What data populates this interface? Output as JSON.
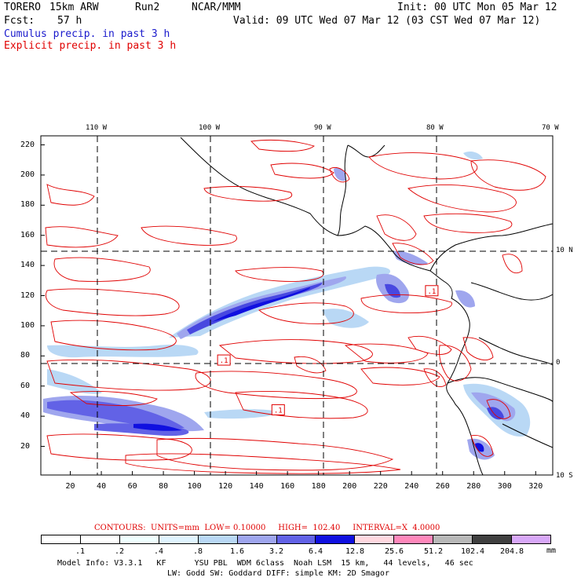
{
  "header": {
    "model_name": "TORERO",
    "resolution": "15km ARW",
    "run": "Run2",
    "center": "NCAR/MMM",
    "init_label": "Init: 00 UTC Mon 05 Mar 12",
    "fcst_label": "Fcst:",
    "fcst_value": "57 h",
    "valid_label": "Valid: 09 UTC Wed 07 Mar 12 (03 CST Wed 07 Mar 12)"
  },
  "legend": {
    "cumulus": "Cumulus precip. in past 3 h",
    "explicit": "Explicit precip. in past 3 h",
    "cumulus_color": "#1a1acc",
    "explicit_color": "#e00000"
  },
  "axes": {
    "top_lon_labels": [
      "110 W",
      "100 W",
      "90 W",
      "80 W",
      "70 W"
    ],
    "right_lat_labels": [
      "10 N",
      "0",
      "10 S"
    ],
    "left_y_ticks": [
      "220",
      "200",
      "180",
      "160",
      "140",
      "120",
      "100",
      "80",
      "60",
      "40",
      "20"
    ],
    "bottom_x_ticks": [
      "20",
      "40",
      "60",
      "80",
      "100",
      "120",
      "140",
      "160",
      "180",
      "200",
      "220",
      "240",
      "260",
      "280",
      "300",
      "320"
    ]
  },
  "map_data": {
    "type": "precipitation map",
    "x_range": [
      1,
      331
    ],
    "y_range": [
      1,
      226
    ],
    "lon_grid_x": [
      39,
      117,
      193,
      270
    ],
    "lat_grid_y": [
      150,
      75
    ],
    "contour_boxes": [
      {
        "label": ".1",
        "x": 119,
        "y": 77
      },
      {
        "label": ".1",
        "x": 154,
        "y": 44
      },
      {
        "label": ".1",
        "x": 253,
        "y": 123
      }
    ]
  },
  "contours": {
    "text": "CONTOURS:  UNITS=mm  LOW= 0.10000     HIGH=  102.40     INTERVAL=X  4.0000",
    "color": "#e00000"
  },
  "colorbar": {
    "labels": [
      ".1",
      ".2",
      ".4",
      ".8",
      "1.6",
      "3.2",
      "6.4",
      "12.8",
      "25.6",
      "51.2",
      "102.4",
      "204.8"
    ],
    "colors": [
      "#ffffff",
      "#ffffff",
      "#f0ffff",
      "#e0f4ff",
      "#b9d8f5",
      "#9fa6ee",
      "#6262e6",
      "#1010e0",
      "#ffd8e0",
      "#ff88bb",
      "#b8b8b8",
      "#404040",
      "#d8a8f8"
    ],
    "unit": "mm"
  },
  "footer": {
    "line1": "Model Info: V3.3.1   KF      YSU PBL  WDM 6class  Noah LSM  15 km,   44 levels,   46 sec",
    "line2": "LW: Godd SW: Goddard DIFF: simple KM: 2D Smagor"
  }
}
